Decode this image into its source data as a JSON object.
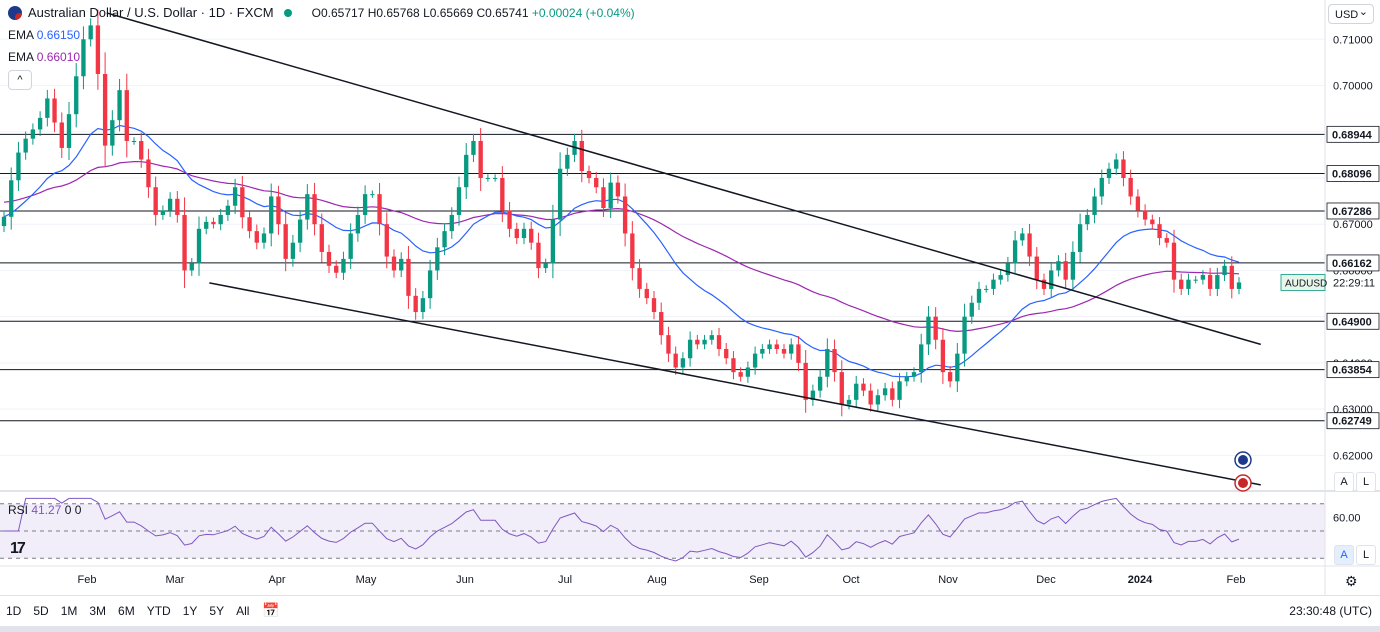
{
  "header": {
    "title": "Australian Dollar / U.S. Dollar · 1D · FXCM",
    "open": "O0.65717",
    "high": "H0.65768",
    "low": "L0.65669",
    "close": "C0.65741",
    "change": "+0.00024 (+0.04%)"
  },
  "indicators": {
    "ema_fast_label": "EMA",
    "ema_fast_value": "0.66150",
    "ema_fast_color": "#2962ff",
    "ema_slow_label": "EMA",
    "ema_slow_value": "0.66010",
    "ema_slow_color": "#9c27b0",
    "rsi_label": "RSI",
    "rsi_value": "41.27",
    "rsi_params": "0 0",
    "collapse_icon": "^"
  },
  "currency_selector": "USD",
  "symbol_tag": "AUDUSD",
  "countdown": "22:29:11",
  "price_axis": {
    "ticks": [
      "0.71000",
      "0.70000",
      "0.69000",
      "0.68000",
      "0.67000",
      "0.66000",
      "0.65000",
      "0.64000",
      "0.63000",
      "0.62000"
    ],
    "labels": [
      "0.68944",
      "0.68096",
      "0.67286",
      "0.66162",
      "0.64900",
      "0.63854",
      "0.62749"
    ]
  },
  "rsi_axis": {
    "tick": "60.00"
  },
  "time_axis": [
    "Feb",
    "Mar",
    "Apr",
    "May",
    "Jun",
    "Jul",
    "Aug",
    "Sep",
    "Oct",
    "Nov",
    "Dec",
    "2024",
    "Feb"
  ],
  "bottom": {
    "ranges": [
      "1D",
      "5D",
      "1M",
      "3M",
      "6M",
      "YTD",
      "1Y",
      "5Y",
      "All"
    ],
    "calendar_icon": "calendar-icon",
    "clock": "23:30:48 (UTC)"
  },
  "buttons": {
    "auto": "A",
    "log": "L",
    "rsi_auto": "A",
    "rsi_log": "L"
  },
  "colors": {
    "up": "#089981",
    "down": "#f23645",
    "ema_fast": "#2962ff",
    "ema_slow": "#9c27b0",
    "rsi": "#7e57c2"
  },
  "chart_data": {
    "type": "candlestick",
    "series": [
      {
        "name": "AUDUSD",
        "values": [
          0.6716,
          0.6795,
          0.6855,
          0.6885,
          0.6905,
          0.693,
          0.6972,
          0.692,
          0.6865,
          0.6938,
          0.702,
          0.71,
          0.713,
          0.7025,
          0.687,
          0.6925,
          0.699,
          0.688,
          0.688,
          0.684,
          0.678,
          0.672,
          0.673,
          0.6755,
          0.672,
          0.66,
          0.6615,
          0.669,
          0.6705,
          0.67,
          0.672,
          0.674,
          0.678,
          0.6715,
          0.6685,
          0.666,
          0.668,
          0.676,
          0.67,
          0.6625,
          0.666,
          0.671,
          0.6765,
          0.67,
          0.664,
          0.661,
          0.6595,
          0.6625,
          0.668,
          0.672,
          0.6765,
          0.6765,
          0.67,
          0.663,
          0.66,
          0.6625,
          0.6545,
          0.651,
          0.654,
          0.66,
          0.665,
          0.6685,
          0.672,
          0.678,
          0.685,
          0.688,
          0.68,
          0.68,
          0.68,
          0.673,
          0.669,
          0.667,
          0.669,
          0.666,
          0.6605,
          0.6615,
          0.671,
          0.682,
          0.685,
          0.688,
          0.6815,
          0.68,
          0.678,
          0.6735,
          0.679,
          0.676,
          0.668,
          0.6605,
          0.656,
          0.654,
          0.651,
          0.646,
          0.642,
          0.639,
          0.641,
          0.645,
          0.644,
          0.645,
          0.646,
          0.643,
          0.641,
          0.638,
          0.637,
          0.639,
          0.642,
          0.643,
          0.644,
          0.643,
          0.642,
          0.644,
          0.64,
          0.632,
          0.634,
          0.637,
          0.643,
          0.638,
          0.631,
          0.632,
          0.6355,
          0.634,
          0.631,
          0.633,
          0.6345,
          0.632,
          0.636,
          0.637,
          0.638,
          0.644,
          0.65,
          0.645,
          0.638,
          0.636,
          0.642,
          0.65,
          0.653,
          0.656,
          0.656,
          0.658,
          0.659,
          0.6615,
          0.6665,
          0.668,
          0.663,
          0.658,
          0.656,
          0.66,
          0.662,
          0.658,
          0.664,
          0.67,
          0.672,
          0.676,
          0.68,
          0.682,
          0.684,
          0.68,
          0.676,
          0.673,
          0.671,
          0.67,
          0.667,
          0.666,
          0.658,
          0.656,
          0.658,
          0.658,
          0.659,
          0.656,
          0.659,
          0.661,
          0.656,
          0.6574
        ]
      }
    ],
    "ema_fast_values": [
      0.6615
    ],
    "ema_slow_values": [
      0.6601
    ],
    "horizontal_levels": [
      0.68944,
      0.68096,
      0.67286,
      0.66162,
      0.649,
      0.63854,
      0.62749
    ],
    "trendlines": [
      {
        "from": [
          "2023-02-03",
          0.7157
        ],
        "to": [
          "2024-02-09",
          0.644
        ]
      },
      {
        "from": [
          "2023-03-08",
          0.6573
        ],
        "to": [
          "2024-02-09",
          0.6136
        ]
      }
    ],
    "xlabel": "",
    "ylabel": "",
    "ylim": [
      0.6125,
      0.7185
    ],
    "rsi": {
      "ylim": [
        25,
        75
      ],
      "levels": [
        70,
        50,
        30
      ],
      "last": 41.27
    },
    "grid": true,
    "legend": "none"
  }
}
